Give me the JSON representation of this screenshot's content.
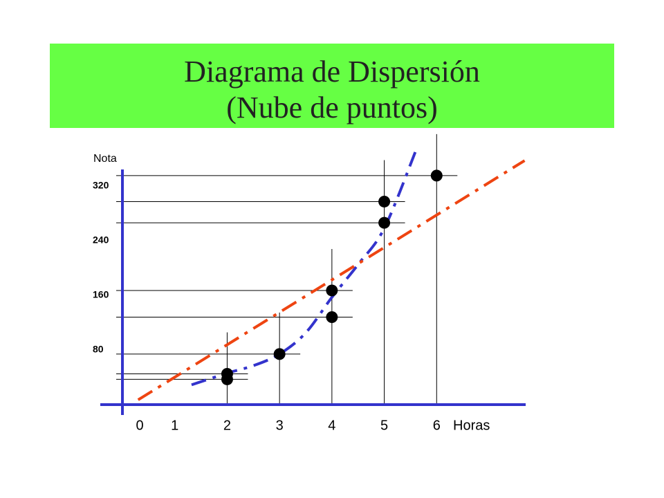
{
  "chart_data": {
    "type": "scatter",
    "title": "Diagrama de Dispersión",
    "subtitle": "(Nube de puntos)",
    "x_label": "Horas",
    "y_label": "Nota",
    "x": [
      2,
      2,
      3,
      4,
      4,
      5,
      5,
      6
    ],
    "values": [
      45,
      37,
      74,
      128,
      167,
      266,
      297,
      335
    ],
    "color": "#000000",
    "axis_color": "#3333cc",
    "xlim": [
      0,
      7.7
    ],
    "ylim": [
      0,
      344
    ],
    "xticks": [
      0,
      1,
      2,
      3,
      4,
      5,
      6
    ],
    "yticks": [
      80,
      160,
      240,
      320
    ],
    "linear_fit": {
      "color": "#ee4411",
      "x": [
        0.3,
        7.68
      ],
      "values": [
        7,
        357
      ]
    },
    "curve_fit": {
      "color": "#3333cc",
      "x": [
        1.32,
        2,
        2.5,
        3,
        3.5,
        4,
        4.5,
        5,
        5.6
      ],
      "values": [
        29,
        46,
        57,
        74,
        105,
        157,
        205,
        258,
        371
      ]
    }
  }
}
